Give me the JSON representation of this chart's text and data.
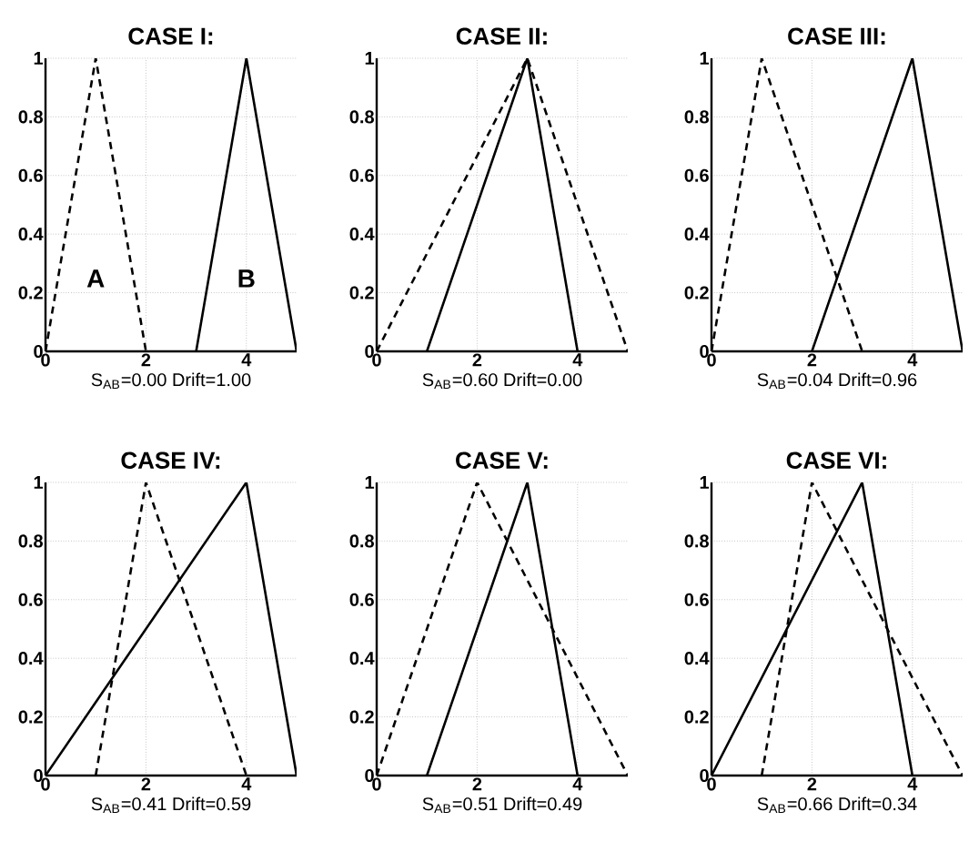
{
  "chart_data": [
    {
      "type": "line",
      "title": "CASE I:",
      "xlabel": "S$_{AB}$=0.00   Drift=1.00",
      "xlim": [
        0,
        5
      ],
      "ylim": [
        0,
        1
      ],
      "xticks": [
        0,
        2,
        4
      ],
      "yticks": [
        0,
        0.2,
        0.4,
        0.6,
        0.8,
        1
      ],
      "grid": true,
      "marker": "none",
      "annotations": [
        "A",
        "B"
      ],
      "series": [
        {
          "color": "#000000",
          "line_style": "dashed",
          "x": [
            0,
            1,
            2
          ],
          "values": [
            0,
            1,
            0
          ]
        },
        {
          "color": "#000000",
          "line_style": "solid",
          "x": [
            3,
            4,
            5
          ],
          "values": [
            0,
            1,
            0
          ]
        }
      ]
    },
    {
      "type": "line",
      "title": "CASE II:",
      "xlabel": "S$_{AB}$=0.60   Drift=0.00",
      "xlim": [
        0,
        5
      ],
      "ylim": [
        0,
        1
      ],
      "xticks": [
        0,
        2,
        4
      ],
      "yticks": [
        0,
        0.2,
        0.4,
        0.6,
        0.8,
        1
      ],
      "grid": true,
      "marker": "none",
      "series": [
        {
          "color": "#000000",
          "line_style": "dashed",
          "x": [
            0,
            3,
            5
          ],
          "values": [
            0,
            1,
            0
          ]
        },
        {
          "color": "#000000",
          "line_style": "solid",
          "x": [
            1,
            3,
            4
          ],
          "values": [
            0,
            1,
            0
          ]
        }
      ]
    },
    {
      "type": "line",
      "title": "CASE III:",
      "xlabel": "S$_{AB}$=0.04   Drift=0.96",
      "xlim": [
        0,
        5
      ],
      "ylim": [
        0,
        1
      ],
      "xticks": [
        0,
        2,
        4
      ],
      "yticks": [
        0,
        0.2,
        0.4,
        0.6,
        0.8,
        1
      ],
      "grid": true,
      "marker": "none",
      "series": [
        {
          "color": "#000000",
          "line_style": "dashed",
          "x": [
            0,
            1,
            3
          ],
          "values": [
            0,
            1,
            0
          ]
        },
        {
          "color": "#000000",
          "line_style": "solid",
          "x": [
            2,
            4,
            5
          ],
          "values": [
            0,
            1,
            0
          ]
        }
      ]
    },
    {
      "type": "line",
      "title": "CASE IV:",
      "xlabel": "S$_{AB}$=0.41   Drift=0.59",
      "xlim": [
        0,
        5
      ],
      "ylim": [
        0,
        1
      ],
      "xticks": [
        0,
        2,
        4
      ],
      "yticks": [
        0,
        0.2,
        0.4,
        0.6,
        0.8,
        1
      ],
      "grid": true,
      "marker": "none",
      "series": [
        {
          "color": "#000000",
          "line_style": "dashed",
          "x": [
            1,
            2,
            4
          ],
          "values": [
            0,
            1,
            0
          ]
        },
        {
          "color": "#000000",
          "line_style": "solid",
          "x": [
            0,
            4,
            5
          ],
          "values": [
            0,
            1,
            0
          ]
        }
      ]
    },
    {
      "type": "line",
      "title": "CASE V:",
      "xlabel": "S$_{AB}$=0.51   Drift=0.49",
      "xlim": [
        0,
        5
      ],
      "ylim": [
        0,
        1
      ],
      "xticks": [
        0,
        2,
        4
      ],
      "yticks": [
        0,
        0.2,
        0.4,
        0.6,
        0.8,
        1
      ],
      "grid": true,
      "marker": "none",
      "series": [
        {
          "color": "#000000",
          "line_style": "dashed",
          "x": [
            0,
            2,
            5
          ],
          "values": [
            0,
            1,
            0
          ]
        },
        {
          "color": "#000000",
          "line_style": "solid",
          "x": [
            1,
            3,
            4
          ],
          "values": [
            0,
            1,
            0
          ]
        }
      ]
    },
    {
      "type": "line",
      "title": "CASE VI:",
      "xlabel": "S$_{AB}$=0.66   Drift=0.34",
      "xlim": [
        0,
        5
      ],
      "ylim": [
        0,
        1
      ],
      "xticks": [
        0,
        2,
        4
      ],
      "yticks": [
        0,
        0.2,
        0.4,
        0.6,
        0.8,
        1
      ],
      "grid": true,
      "marker": "none",
      "series": [
        {
          "color": "#000000",
          "line_style": "dashed",
          "x": [
            1,
            2,
            5
          ],
          "values": [
            0,
            1,
            0
          ]
        },
        {
          "color": "#000000",
          "line_style": "solid",
          "x": [
            0,
            3,
            4
          ],
          "values": [
            0,
            1,
            0
          ]
        }
      ]
    }
  ]
}
